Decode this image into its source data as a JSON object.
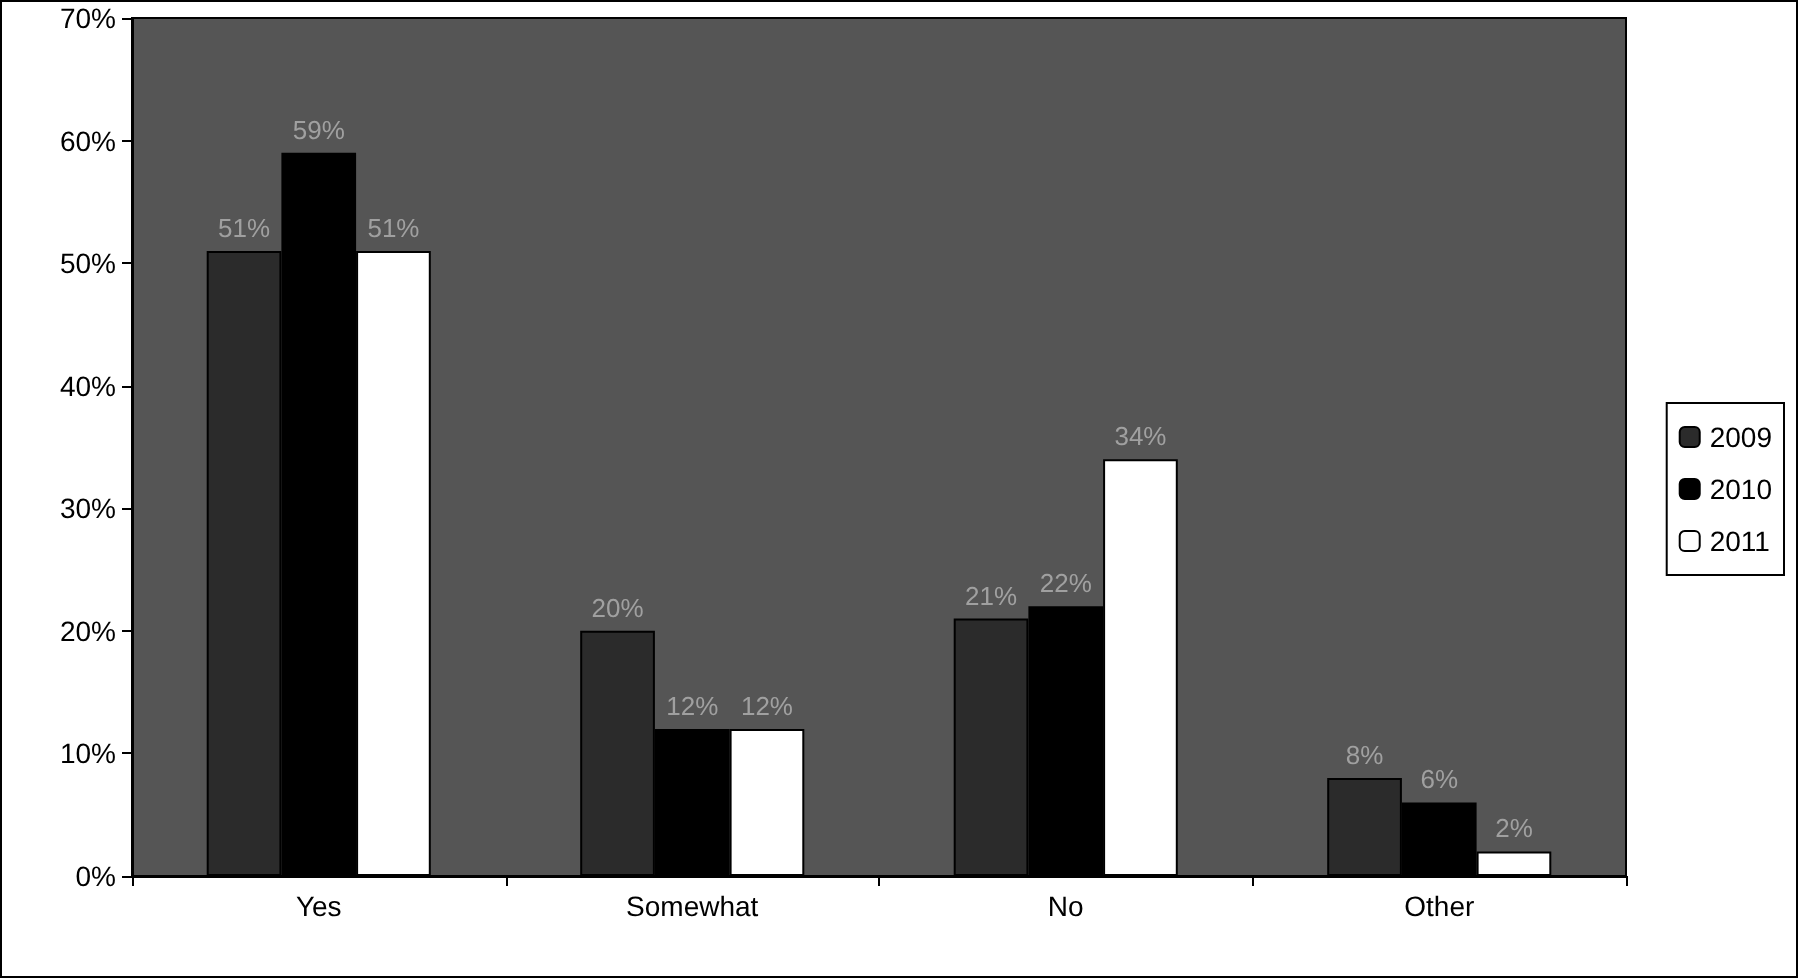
{
  "chart_data": {
    "type": "bar",
    "categories": [
      "Yes",
      "Somewhat",
      "No",
      "Other"
    ],
    "series": [
      {
        "name": "2009",
        "color": "#2b2b2b",
        "values": [
          51,
          20,
          21,
          8
        ],
        "value_labels": [
          "51%",
          "20%",
          "21%",
          "8%"
        ]
      },
      {
        "name": "2010",
        "color": "#000000",
        "values": [
          59,
          12,
          22,
          6
        ],
        "value_labels": [
          "59%",
          "12%",
          "22%",
          "6%"
        ]
      },
      {
        "name": "2011",
        "color": "#ffffff",
        "values": [
          51,
          12,
          34,
          2
        ],
        "value_labels": [
          "51%",
          "12%",
          "34%",
          "2%"
        ]
      }
    ],
    "ylim": [
      0,
      70
    ],
    "yticks": [
      {
        "value": 0,
        "label": "0%"
      },
      {
        "value": 10,
        "label": "10%"
      },
      {
        "value": 20,
        "label": "20%"
      },
      {
        "value": 30,
        "label": "30%"
      },
      {
        "value": 40,
        "label": "40%"
      },
      {
        "value": 50,
        "label": "50%"
      },
      {
        "value": 60,
        "label": "60%"
      },
      {
        "value": 70,
        "label": "70%"
      }
    ],
    "grid": false,
    "legend": "right"
  }
}
